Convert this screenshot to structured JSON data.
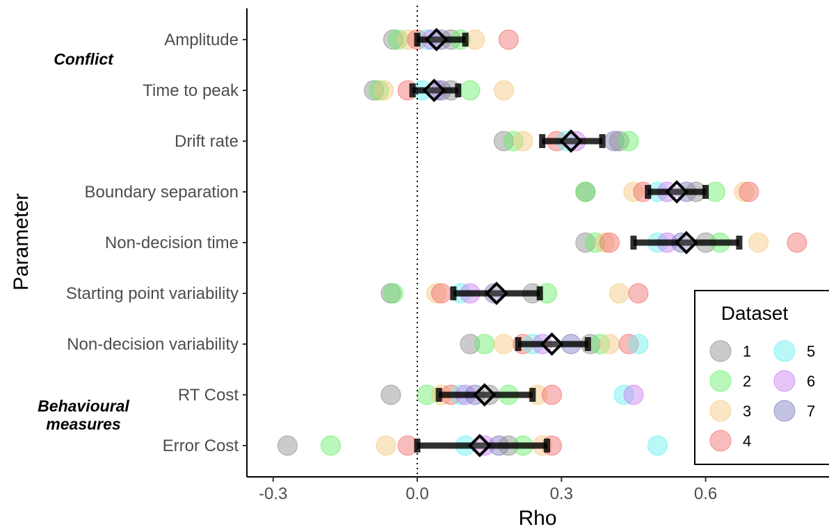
{
  "chart_data": {
    "type": "scatter",
    "xlabel": "Rho",
    "ylabel": "Parameter",
    "xlim": [
      -0.35,
      0.8
    ],
    "x_ticks": [
      -0.3,
      0.0,
      0.3,
      0.6
    ],
    "x_tick_labels": [
      "-0.3",
      "0.0",
      "0.3",
      "0.6"
    ],
    "reference_line_x": 0,
    "grid": false,
    "legend_title": "Dataset",
    "legend_position": "right",
    "series": [
      {
        "name": "1",
        "color": "#8c8c8c"
      },
      {
        "name": "2",
        "color": "#66ee66"
      },
      {
        "name": "3",
        "color": "#f5c77e"
      },
      {
        "name": "4",
        "color": "#f26b6b"
      },
      {
        "name": "5",
        "color": "#66f0f0"
      },
      {
        "name": "6",
        "color": "#c97ef0"
      },
      {
        "name": "7",
        "color": "#7b7bbf"
      }
    ],
    "group_labels": [
      {
        "text": "Conflict",
        "near": "Amplitude"
      },
      {
        "text": "Behavioural measures",
        "near": "RT Cost"
      }
    ],
    "categories": [
      "Amplitude",
      "Time to peak",
      "Drift rate",
      "Boundary separation",
      "Non-decision time",
      "Starting point variability",
      "Non-decision variability",
      "RT Cost",
      "Error Cost"
    ],
    "rows": [
      {
        "label": "Amplitude",
        "estimate": 0.04,
        "ci": [
          0.0,
          0.1
        ],
        "points": [
          -0.05,
          -0.04,
          -0.02,
          0.0,
          0.02,
          0.03,
          0.05,
          0.07,
          0.09,
          0.12,
          0.19
        ]
      },
      {
        "label": "Time to peak",
        "estimate": 0.035,
        "ci": [
          -0.01,
          0.085
        ],
        "points": [
          -0.09,
          -0.08,
          -0.07,
          -0.02,
          0.01,
          0.04,
          0.05,
          0.07,
          0.11,
          0.18
        ]
      },
      {
        "label": "Drift rate",
        "estimate": 0.32,
        "ci": [
          0.26,
          0.385
        ],
        "points": [
          0.18,
          0.2,
          0.22,
          0.29,
          0.31,
          0.33,
          0.41,
          0.42,
          0.44
        ]
      },
      {
        "label": "Boundary separation",
        "estimate": 0.54,
        "ci": [
          0.48,
          0.6
        ],
        "points": [
          0.35,
          0.35,
          0.45,
          0.47,
          0.5,
          0.52,
          0.56,
          0.58,
          0.62,
          0.68,
          0.69
        ]
      },
      {
        "label": "Non-decision time",
        "estimate": 0.56,
        "ci": [
          0.45,
          0.67
        ],
        "points": [
          0.35,
          0.37,
          0.39,
          0.4,
          0.5,
          0.52,
          0.55,
          0.6,
          0.63,
          0.71,
          0.79
        ]
      },
      {
        "label": "Starting point variability",
        "estimate": 0.165,
        "ci": [
          0.075,
          0.255
        ],
        "points": [
          -0.055,
          -0.05,
          0.04,
          0.05,
          0.09,
          0.11,
          0.16,
          0.24,
          0.27,
          0.42,
          0.46
        ]
      },
      {
        "label": "Non-decision variability",
        "estimate": 0.28,
        "ci": [
          0.21,
          0.355
        ],
        "points": [
          0.11,
          0.14,
          0.18,
          0.22,
          0.24,
          0.26,
          0.32,
          0.36,
          0.38,
          0.4,
          0.44,
          0.46
        ]
      },
      {
        "label": "RT Cost",
        "estimate": 0.14,
        "ci": [
          0.045,
          0.24
        ],
        "points": [
          -0.055,
          0.02,
          0.05,
          0.07,
          0.09,
          0.1,
          0.12,
          0.15,
          0.19,
          0.25,
          0.28,
          0.43,
          0.45
        ]
      },
      {
        "label": "Error Cost",
        "estimate": 0.13,
        "ci": [
          0.0,
          0.27
        ],
        "points": [
          -0.27,
          -0.18,
          -0.065,
          -0.02,
          0.1,
          0.14,
          0.17,
          0.19,
          0.22,
          0.26,
          0.28,
          0.5
        ]
      }
    ]
  }
}
